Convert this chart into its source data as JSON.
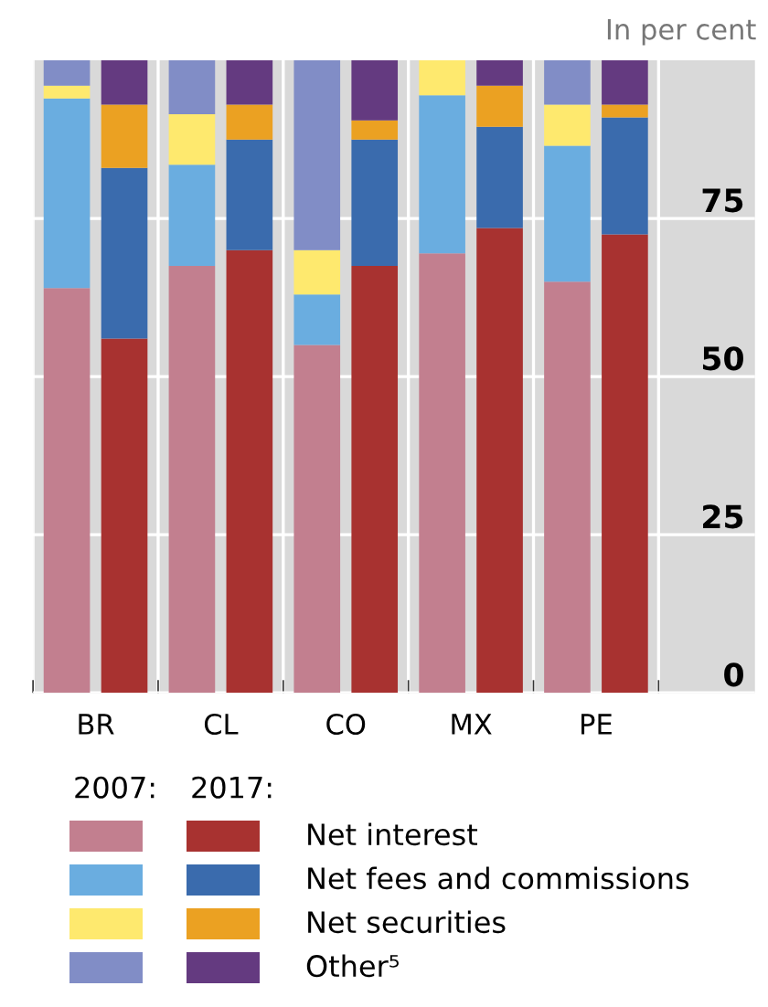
{
  "chart_data": [
    {
      "type": "bar",
      "stacked": true,
      "ylabel": "In per cent",
      "categories": [
        "BR",
        "CL",
        "CO",
        "MX",
        "PE"
      ],
      "series": [
        {
          "color": "#c27f8f",
          "values": [
            64,
            67.5,
            55,
            69.5,
            65
          ]
        },
        {
          "color": "#6aade0",
          "values": [
            30,
            16,
            8,
            25,
            21.5
          ]
        },
        {
          "color": "#fee96e",
          "values": [
            2,
            8,
            7,
            5.5,
            6.5
          ]
        },
        {
          "color": "#818dc6",
          "values": [
            4,
            8.5,
            30,
            0,
            7
          ]
        }
      ],
      "ylim": [
        0,
        100
      ],
      "yticks": [
        0,
        25,
        50,
        75
      ],
      "grid": true,
      "annotations": [
        "2007:"
      ]
    },
    {
      "type": "bar",
      "stacked": true,
      "categories": [
        null,
        null,
        null,
        null,
        null
      ],
      "series": [
        {
          "name": "Net interest",
          "color": "#a83230",
          "values": [
            56,
            70,
            67.5,
            73.5,
            72.5
          ]
        },
        {
          "name": "Net fees and commissions",
          "color": "#3a6bad",
          "values": [
            27,
            17.5,
            20,
            16,
            18.5
          ]
        },
        {
          "name": "Net securities",
          "color": "#eba122",
          "values": [
            10,
            5.5,
            3,
            6.5,
            2
          ]
        },
        {
          "name": "Other⁵",
          "color": "#643a80",
          "values": [
            7,
            7,
            9.5,
            4,
            7
          ]
        }
      ],
      "ylim": [
        0,
        100
      ],
      "yticks": [
        0,
        25,
        50,
        75
      ],
      "tick_labels": false,
      "legend": "bottom",
      "annotations": [
        "2017:"
      ]
    }
  ]
}
